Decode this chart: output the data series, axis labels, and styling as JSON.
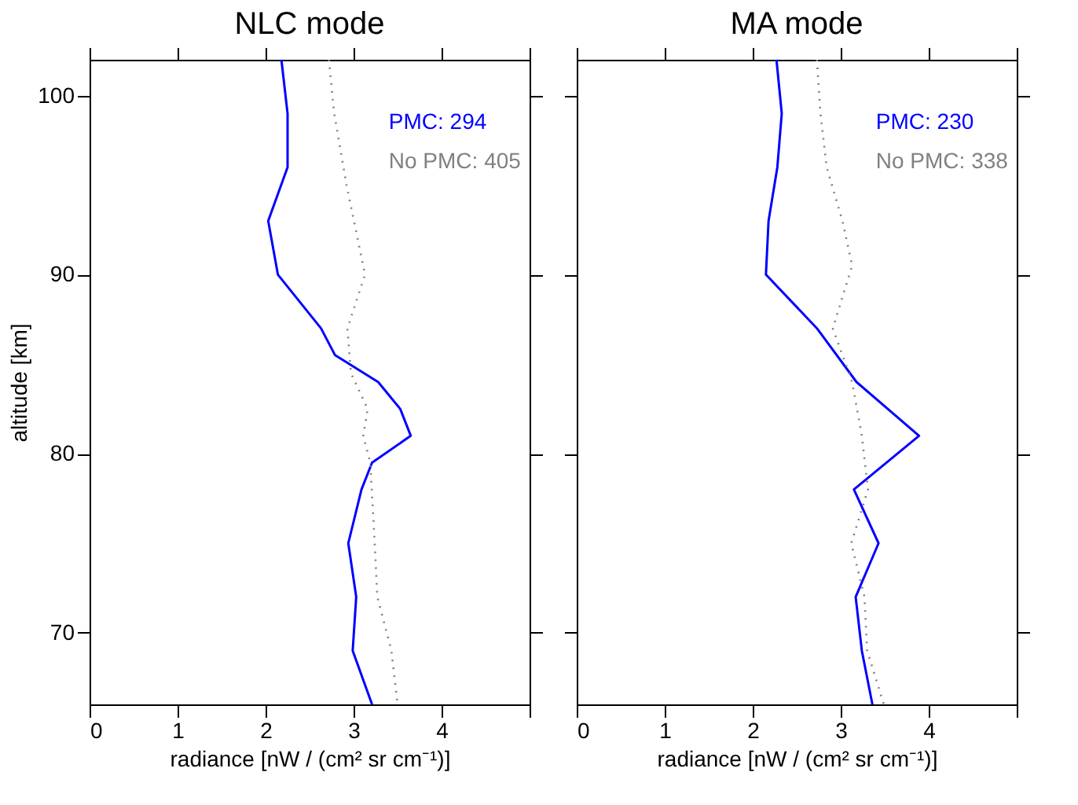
{
  "chart_data": [
    {
      "type": "line",
      "title": "NLC mode",
      "xlabel": "radiance [nW / (cm² sr cm⁻¹)]",
      "ylabel": "altitude [km]",
      "xlim": [
        0,
        5
      ],
      "xticks": [
        0,
        1,
        2,
        3,
        4,
        {
          "value": 5,
          "label": null
        }
      ],
      "ylim": [
        66,
        102
      ],
      "yticks": [
        70,
        80,
        90,
        100
      ],
      "legend": "top right",
      "grid": false,
      "marker": "none",
      "series": [
        {
          "name": "PMC: 294",
          "color": "#0000ff",
          "line_style": "solid",
          "x": [
            2.18,
            2.25,
            2.25,
            2.03,
            2.14,
            2.63,
            2.79,
            3.28,
            3.53,
            3.65,
            3.21,
            3.09,
            2.94,
            3.03,
            2.99,
            3.21
          ],
          "values": [
            102,
            99,
            96,
            93,
            90,
            87,
            85.5,
            84,
            82.5,
            81,
            79.5,
            78,
            75,
            72,
            69,
            66
          ]
        },
        {
          "name": "No PMC: 405",
          "color": "#808080",
          "line_style": "dotted",
          "x": [
            2.72,
            2.78,
            2.92,
            3.13,
            2.93,
            2.97,
            3.16,
            3.11,
            3.19,
            3.24,
            3.27,
            3.43,
            3.5
          ],
          "values": [
            102,
            99,
            95,
            90,
            87,
            84.5,
            82.5,
            81,
            79.5,
            75,
            72,
            69,
            66
          ]
        }
      ]
    },
    {
      "type": "line",
      "title": "MA mode",
      "xlabel": "radiance [nW / (cm² sr cm⁻¹)]",
      "xlim": [
        0,
        5
      ],
      "xticks": [
        0,
        1,
        2,
        3,
        4,
        {
          "value": 5,
          "label": null
        }
      ],
      "ylim": [
        66,
        102
      ],
      "yticks": [
        70,
        80,
        90,
        100
      ],
      "tick_labels": "x",
      "legend": "top right",
      "grid": false,
      "marker": "none",
      "series": [
        {
          "name": "PMC: 230",
          "color": "#0000ff",
          "line_style": "solid",
          "x": [
            2.27,
            2.33,
            2.28,
            2.18,
            2.15,
            2.73,
            3.18,
            3.89,
            3.15,
            3.43,
            3.17,
            3.24,
            3.36
          ],
          "values": [
            102,
            99,
            96,
            93,
            90,
            87,
            84,
            81,
            78,
            75,
            72,
            69,
            66
          ]
        },
        {
          "name": "No PMC: 338",
          "color": "#808080",
          "line_style": "dotted",
          "x": [
            2.73,
            2.77,
            2.84,
            3.02,
            3.13,
            2.91,
            3.13,
            3.24,
            3.31,
            3.12,
            3.27,
            3.3,
            3.49
          ],
          "values": [
            102,
            99,
            96,
            93,
            90.5,
            87,
            84,
            81,
            78,
            75,
            72,
            69,
            66
          ]
        }
      ]
    }
  ]
}
